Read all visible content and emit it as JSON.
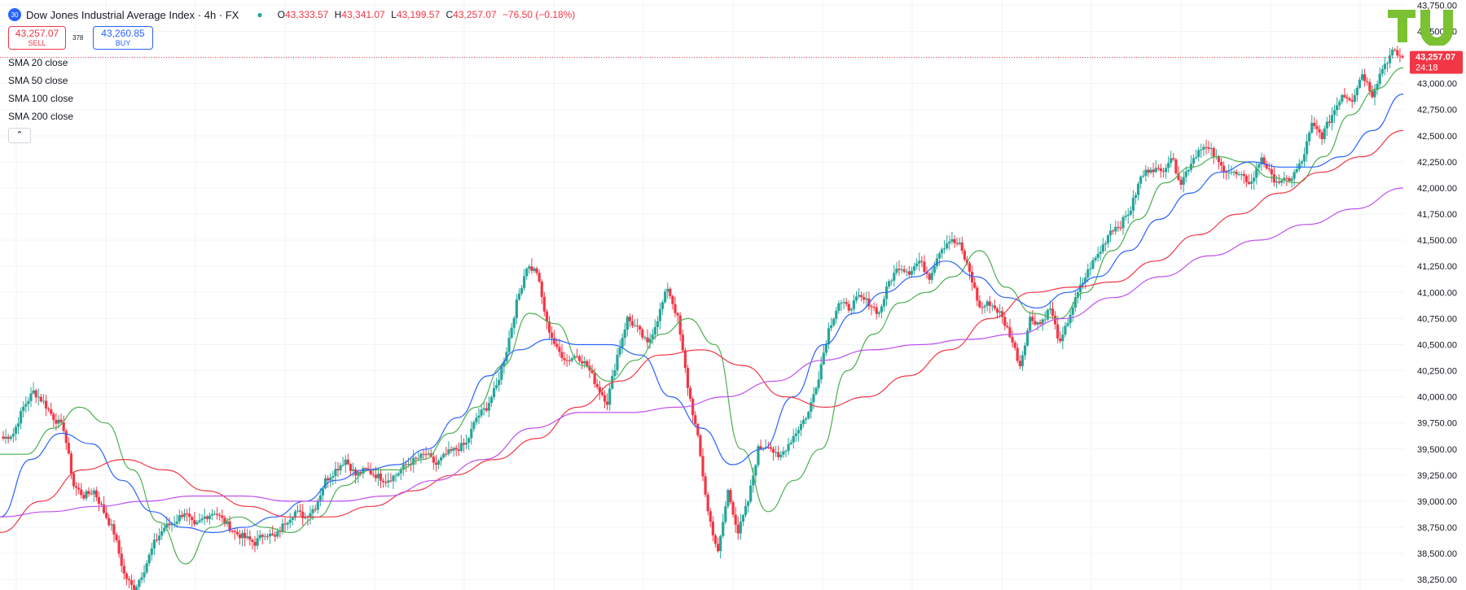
{
  "header": {
    "symbol_badge": "30",
    "title": "Dow Jones Industrial Average Index · 4h · FX",
    "ohlc": {
      "open_key": "O",
      "open": "43,333.57",
      "high_key": "H",
      "high": "43,341.07",
      "low_key": "L",
      "low": "43,199.57",
      "close_key": "C",
      "close": "43,257.07",
      "change": "−76.50 (−0.18%)"
    }
  },
  "trade": {
    "sell_price": "43,257.07",
    "sell_label": "SELL",
    "spread": "378",
    "buy_price": "43,260.85",
    "buy_label": "BUY"
  },
  "indicators": [
    "SMA 20 close",
    "SMA 50 close",
    "SMA 100 close",
    "SMA 200 close"
  ],
  "collapse_icon": "chevron-up-icon",
  "price_tag": {
    "price": "43,257.07",
    "countdown": "24:18",
    "color": "#f23645"
  },
  "colors": {
    "up": "#26a69a",
    "down": "#f23645",
    "sma20": "#4caf50",
    "sma50": "#2962ff",
    "sma100": "#f23645",
    "sma200": "#c050f0",
    "logo": "#7ac231"
  },
  "chart_data": {
    "type": "candlestick",
    "ylim": [
      38150,
      43800
    ],
    "y_ticks": [
      38250,
      38500,
      38750,
      39000,
      39250,
      39500,
      39750,
      40000,
      40250,
      40500,
      40750,
      41000,
      41250,
      41500,
      41750,
      42000,
      42250,
      42500,
      42750,
      43000,
      43250,
      43500,
      43750
    ],
    "y_tick_labels": [
      "38,250.00",
      "38,500.00",
      "38,750.00",
      "39,000.00",
      "39,250.00",
      "39,500.00",
      "39,750.00",
      "40,000.00",
      "40,250.00",
      "40,500.00",
      "40,750.00",
      "41,000.00",
      "41,250.00",
      "41,500.00",
      "41,750.00",
      "42,000.00",
      "42,250.00",
      "42,500.00",
      "42,750.00",
      "43,000.00",
      "43,250.00",
      "43,500.00",
      "43,750.00"
    ],
    "close_path": [
      39600,
      39650,
      39900,
      40050,
      39950,
      39800,
      39700,
      39150,
      39050,
      39100,
      38900,
      38700,
      38300,
      38150,
      38350,
      38600,
      38750,
      38800,
      38900,
      38750,
      38850,
      38900,
      38800,
      38700,
      38650,
      38600,
      38700,
      38650,
      38800,
      38900,
      38850,
      38950,
      39200,
      39300,
      39400,
      39250,
      39300,
      39250,
      39200,
      39250,
      39350,
      39400,
      39450,
      39350,
      39450,
      39500,
      39550,
      39800,
      39900,
      40100,
      40450,
      40900,
      41250,
      41200,
      40700,
      40450,
      40350,
      40400,
      40300,
      40100,
      39950,
      40400,
      40750,
      40650,
      40500,
      40750,
      41050,
      40750,
      40100,
      39600,
      38900,
      38500,
      39100,
      38700,
      39000,
      39500,
      39550,
      39400,
      39550,
      39700,
      39850,
      40200,
      40650,
      40900,
      40850,
      40950,
      40900,
      40800,
      41100,
      41250,
      41200,
      41300,
      41150,
      41400,
      41500,
      41450,
      41200,
      40850,
      40900,
      40800,
      40600,
      40300,
      40750,
      40700,
      40850,
      40500,
      40800,
      41050,
      41250,
      41400,
      41600,
      41650,
      41800,
      42100,
      42200,
      42150,
      42300,
      42050,
      42250,
      42400,
      42350,
      42200,
      42150,
      42100,
      42050,
      42300,
      42100,
      42050,
      42100,
      42250,
      42600,
      42500,
      42700,
      42900,
      42850,
      43100,
      42900,
      43150,
      43300,
      43250
    ],
    "series": [
      {
        "name": "SMA 20 close",
        "values": [
          39450,
          39450,
          39700,
          39900,
          39750,
          39300,
          38800,
          38400,
          38750,
          38850,
          38750,
          38700,
          38850,
          39150,
          39300,
          39300,
          39400,
          39650,
          39900,
          40300,
          40800,
          40700,
          40300,
          40150,
          40350,
          40600,
          40750,
          40500,
          39500,
          38900,
          39200,
          39500,
          40250,
          40600,
          40900,
          41000,
          41150,
          41400,
          41050,
          40800,
          40750,
          41000,
          41400,
          41700,
          42050,
          42200,
          42300,
          42250,
          42100,
          42050,
          42300,
          42700,
          42950,
          43150
        ]
      },
      {
        "name": "SMA 50 close",
        "values": [
          38850,
          39400,
          39650,
          39550,
          39200,
          38900,
          38750,
          38700,
          38750,
          38850,
          39000,
          39200,
          39300,
          39350,
          39500,
          39800,
          40200,
          40450,
          40550,
          40500,
          40500,
          40400,
          40000,
          39700,
          39350,
          39500,
          40000,
          40500,
          40800,
          41000,
          41150,
          41300,
          41150,
          40950,
          40850,
          41000,
          41150,
          41400,
          41700,
          41950,
          42150,
          42250,
          42200,
          42200,
          42300,
          42550,
          42900
        ]
      },
      {
        "name": "SMA 100 close",
        "values": [
          38700,
          39000,
          39300,
          39400,
          39300,
          39100,
          38950,
          38850,
          38850,
          38950,
          39100,
          39250,
          39400,
          39600,
          39900,
          40150,
          40400,
          40450,
          40300,
          40000,
          39900,
          40000,
          40200,
          40450,
          40750,
          41000,
          41050,
          41100,
          41300,
          41550,
          41750,
          41950,
          42150,
          42300,
          42550
        ]
      },
      {
        "name": "SMA 200 close",
        "values": [
          38850,
          38900,
          38950,
          39000,
          39050,
          39050,
          39000,
          39000,
          39050,
          39200,
          39400,
          39700,
          39850,
          39850,
          39900,
          40000,
          40150,
          40350,
          40450,
          40500,
          40550,
          40600,
          40750,
          40950,
          41150,
          41350,
          41500,
          41650,
          41800,
          42000
        ]
      }
    ]
  }
}
